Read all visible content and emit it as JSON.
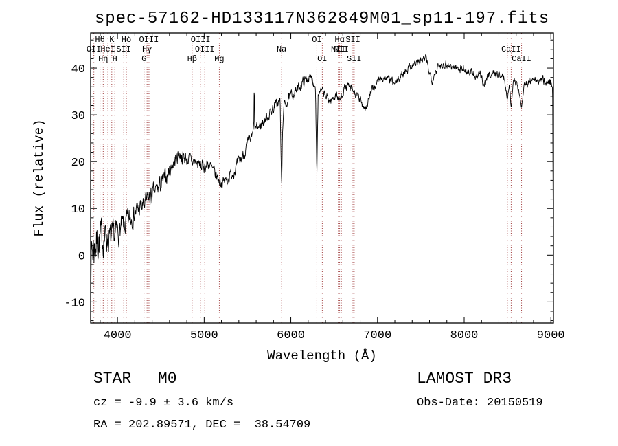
{
  "figure": {
    "annotations": {
      "class_label": "STAR",
      "subclass_label": "M0",
      "cz_text": "cz = -9.9 ± 3.6 km/s",
      "radec_text": "RA = 202.89571, DEC =  38.54709",
      "survey_text": "LAMOST DR3",
      "obsdate_text": "Obs-Date: 20150519"
    },
    "colors": {
      "trace": "#000000",
      "frame": "#000000",
      "background": "#ffffff",
      "line_marker": "#a03c3c",
      "line_label": "#8b2525"
    }
  },
  "chart_data": {
    "type": "line",
    "title": "spec-57162-HD133117N362849M01_sp11-197.fits",
    "xlabel": "Wavelength (Å)",
    "ylabel": "Flux (relative)",
    "series_name": "flux",
    "grid": false,
    "xlim": [
      3690,
      9030
    ],
    "ylim": [
      -14.5,
      47.5
    ],
    "x_ticks": [
      4000,
      5000,
      6000,
      7000,
      8000,
      9000
    ],
    "y_ticks": [
      -10,
      0,
      10,
      20,
      30,
      40
    ],
    "x_minor_step": 200,
    "y_minor_step": 2,
    "spectral_lines": [
      {
        "wavelength": 3727,
        "label": "OII",
        "row": 2
      },
      {
        "wavelength": 3798,
        "label": "Hθ",
        "row": 1
      },
      {
        "wavelength": 3835,
        "label": "Hη",
        "row": 3
      },
      {
        "wavelength": 3889,
        "label": "HeI",
        "row": 2
      },
      {
        "wavelength": 3934,
        "label": "K",
        "row": 1
      },
      {
        "wavelength": 3969,
        "label": "H",
        "row": 3
      },
      {
        "wavelength": 4072,
        "label": "SII",
        "row": 2
      },
      {
        "wavelength": 4102,
        "label": "Hδ",
        "row": 1
      },
      {
        "wavelength": 4306,
        "label": "G",
        "row": 3
      },
      {
        "wavelength": 4341,
        "label": "Hγ",
        "row": 2
      },
      {
        "wavelength": 4363,
        "label": "OIII",
        "row": 1
      },
      {
        "wavelength": 4861,
        "label": "Hβ",
        "row": 3
      },
      {
        "wavelength": 4959,
        "label": "OIII",
        "row": 1
      },
      {
        "wavelength": 5007,
        "label": "OIII",
        "row": 2
      },
      {
        "wavelength": 5175,
        "label": "Mg",
        "row": 3
      },
      {
        "wavelength": 5894,
        "label": "Na",
        "row": 2
      },
      {
        "wavelength": 6300,
        "label": "OI",
        "row": 1
      },
      {
        "wavelength": 6363,
        "label": "OI",
        "row": 3
      },
      {
        "wavelength": 6548,
        "label": "NII",
        "row": 2
      },
      {
        "wavelength": 6563,
        "label": "Hα",
        "row": 1
      },
      {
        "wavelength": 6583,
        "label": "NII",
        "row": 2
      },
      {
        "wavelength": 6717,
        "label": "SII",
        "row": 1
      },
      {
        "wavelength": 6731,
        "label": "SII",
        "row": 3
      },
      {
        "wavelength": 8498,
        "label": "",
        "row": 0
      },
      {
        "wavelength": 8542,
        "label": "CaII",
        "row": 2
      },
      {
        "wavelength": 8662,
        "label": "CaII",
        "row": 3
      }
    ],
    "spectrum_anchors": [
      [
        3690,
        -2,
        6
      ],
      [
        3700,
        1,
        5
      ],
      [
        3730,
        2,
        5
      ],
      [
        3760,
        3,
        4
      ],
      [
        3800,
        3,
        4
      ],
      [
        3840,
        4,
        3.5
      ],
      [
        3880,
        4,
        3
      ],
      [
        3930,
        3,
        3
      ],
      [
        3965,
        4,
        2.8
      ],
      [
        4000,
        5,
        2.6
      ],
      [
        4060,
        6,
        2.4
      ],
      [
        4100,
        6.5,
        2.4
      ],
      [
        4150,
        8,
        2.2
      ],
      [
        4220,
        9.5,
        2
      ],
      [
        4300,
        10.5,
        2
      ],
      [
        4360,
        12,
        2
      ],
      [
        4430,
        13.5,
        1.8
      ],
      [
        4500,
        15,
        1.8
      ],
      [
        4570,
        17,
        1.6
      ],
      [
        4640,
        19.5,
        1.5
      ],
      [
        4700,
        21.5,
        1.5
      ],
      [
        4760,
        21,
        1.4
      ],
      [
        4820,
        20.5,
        1.4
      ],
      [
        4861,
        20,
        1.4
      ],
      [
        4900,
        20,
        1.4
      ],
      [
        4950,
        19,
        1.4
      ],
      [
        5000,
        19,
        1.3
      ],
      [
        5050,
        19.5,
        1.3
      ],
      [
        5100,
        18,
        1.3
      ],
      [
        5170,
        16,
        1.2
      ],
      [
        5210,
        15.5,
        1.2
      ],
      [
        5260,
        16,
        1.2
      ],
      [
        5320,
        17.5,
        1.2
      ],
      [
        5380,
        19,
        1.2
      ],
      [
        5440,
        21,
        1.2
      ],
      [
        5500,
        23.5,
        1.2
      ],
      [
        5560,
        25.5,
        1.2
      ],
      [
        5572,
        27,
        0.8
      ],
      [
        5578,
        37,
        0.3
      ],
      [
        5584,
        27,
        0.8
      ],
      [
        5640,
        27.5,
        1.2
      ],
      [
        5700,
        29,
        1.2
      ],
      [
        5760,
        30.5,
        1.1
      ],
      [
        5820,
        32,
        1.1
      ],
      [
        5876,
        33,
        1
      ],
      [
        5888,
        20,
        0.5
      ],
      [
        5894,
        14,
        0.4
      ],
      [
        5902,
        24,
        0.6
      ],
      [
        5915,
        31.5,
        1
      ],
      [
        5960,
        33,
        1
      ],
      [
        6020,
        34.5,
        1
      ],
      [
        6080,
        35.5,
        1
      ],
      [
        6140,
        37,
        1
      ],
      [
        6200,
        38,
        1
      ],
      [
        6250,
        37.5,
        1
      ],
      [
        6285,
        36,
        0.8
      ],
      [
        6300,
        17,
        0.3
      ],
      [
        6315,
        34.5,
        0.8
      ],
      [
        6360,
        35,
        0.9
      ],
      [
        6420,
        33.5,
        0.9
      ],
      [
        6470,
        33,
        0.9
      ],
      [
        6520,
        34.5,
        0.9
      ],
      [
        6563,
        33,
        0.8
      ],
      [
        6610,
        35.5,
        0.9
      ],
      [
        6660,
        36,
        0.9
      ],
      [
        6717,
        35,
        0.9
      ],
      [
        6760,
        34,
        0.9
      ],
      [
        6820,
        32.5,
        0.9
      ],
      [
        6870,
        31.5,
        0.9
      ],
      [
        6910,
        34,
        0.9
      ],
      [
        6960,
        36,
        0.9
      ],
      [
        7020,
        37.5,
        0.8
      ],
      [
        7080,
        38,
        0.8
      ],
      [
        7140,
        37.5,
        0.8
      ],
      [
        7200,
        36.5,
        0.8
      ],
      [
        7260,
        38,
        0.8
      ],
      [
        7320,
        39.5,
        0.8
      ],
      [
        7380,
        40.5,
        0.8
      ],
      [
        7440,
        41,
        0.8
      ],
      [
        7500,
        41.5,
        0.8
      ],
      [
        7560,
        42,
        0.8
      ],
      [
        7600,
        39,
        0.8
      ],
      [
        7630,
        37.5,
        0.8
      ],
      [
        7670,
        39.5,
        0.8
      ],
      [
        7720,
        40.5,
        0.8
      ],
      [
        7780,
        41,
        0.8
      ],
      [
        7840,
        40.5,
        0.8
      ],
      [
        7900,
        40,
        0.8
      ],
      [
        7960,
        40,
        0.8
      ],
      [
        8020,
        39.5,
        0.8
      ],
      [
        8080,
        39,
        0.8
      ],
      [
        8140,
        38,
        0.8
      ],
      [
        8190,
        38.5,
        0.8
      ],
      [
        8230,
        36.5,
        0.8
      ],
      [
        8280,
        38.5,
        0.8
      ],
      [
        8340,
        39,
        0.8
      ],
      [
        8400,
        38.5,
        0.8
      ],
      [
        8460,
        38,
        0.8
      ],
      [
        8498,
        33.5,
        0.4
      ],
      [
        8520,
        37,
        0.7
      ],
      [
        8542,
        31.5,
        0.4
      ],
      [
        8565,
        37,
        0.7
      ],
      [
        8610,
        37,
        0.7
      ],
      [
        8662,
        31.5,
        0.4
      ],
      [
        8690,
        36.5,
        0.7
      ],
      [
        8740,
        37,
        0.8
      ],
      [
        8800,
        37.5,
        0.8
      ],
      [
        8860,
        37,
        0.9
      ],
      [
        8920,
        37.5,
        1
      ],
      [
        8970,
        37,
        1
      ],
      [
        9010,
        37,
        1
      ],
      [
        9020,
        36,
        0.5
      ],
      [
        9028,
        2,
        0.2
      ]
    ]
  }
}
